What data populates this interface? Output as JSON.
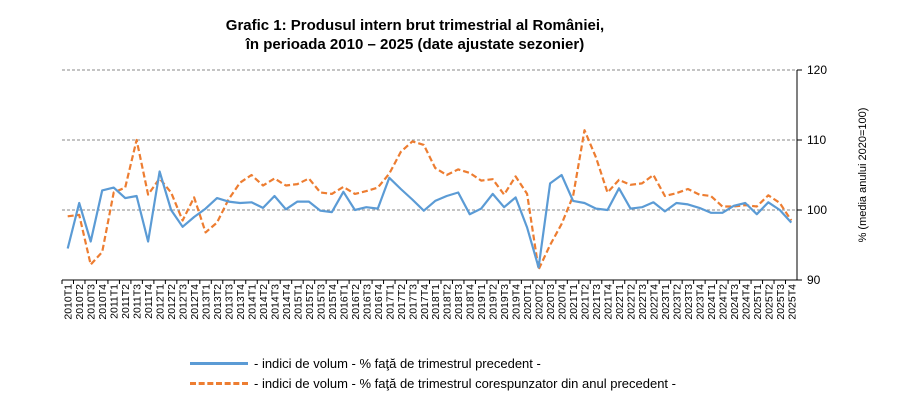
{
  "chart_data": {
    "type": "line",
    "title": "Grafic 1: Produsul intern brut trimestrial al României,",
    "subtitle": "în perioada 2010 – 2025 (date ajustate sezonier)",
    "ylabel": "% (media anului 2020=100)",
    "ylim": [
      90,
      120
    ],
    "yticks": [
      90,
      100,
      110,
      120
    ],
    "y_axis_position": "right",
    "grid": "horizontal dashed",
    "legend_position": "bottom",
    "categories": [
      "2010T1",
      "2010T2",
      "2010T3",
      "2010T4",
      "2011T1",
      "2011T2",
      "2011T3",
      "2011T4",
      "2012T1",
      "2012T2",
      "2012T3",
      "2012T4",
      "2013T1",
      "2013T2",
      "2013T3",
      "2013T4",
      "2014T1",
      "2014T2",
      "2014T3",
      "2014T4",
      "2015T1",
      "2015T2",
      "2015T3",
      "2015T4",
      "2016T1",
      "2016T2",
      "2016T3",
      "2016T4",
      "2017T1",
      "2017T2",
      "2017T3",
      "2017T4",
      "2018T1",
      "2018T2",
      "2018T3",
      "2018T4",
      "2019T1",
      "2019T2",
      "2019T3",
      "2019T4",
      "2020T1",
      "2020T2",
      "2020T3",
      "2020T4",
      "2021T1",
      "2021T2",
      "2021T3",
      "2021T4",
      "2022T1",
      "2022T2",
      "2022T3",
      "2022T4",
      "2023T1",
      "2023T2",
      "2023T3",
      "2023T4",
      "2024T1",
      "2024T2",
      "2024T3",
      "2024T4",
      "2025T1",
      "2025T2",
      "2025T3",
      "2025T4"
    ],
    "series": [
      {
        "name": "- indici de volum - % faţă de trimestrul precedent -",
        "color": "#5B9BD5",
        "style": "solid",
        "values": [
          94.5,
          101,
          95.5,
          102.8,
          103.2,
          101.7,
          102,
          95.5,
          105.5,
          100,
          97.6,
          99,
          100.2,
          101.7,
          101.2,
          101,
          101.1,
          100.3,
          102,
          100.1,
          101.2,
          101.2,
          99.9,
          99.7,
          102.6,
          100,
          100.4,
          100.2,
          104.6,
          103,
          101.5,
          99.9,
          101.3,
          102,
          102.5,
          99.4,
          100.2,
          102.3,
          100.4,
          101.8,
          97.5,
          91.8,
          103.8,
          105,
          101.3,
          101,
          100.2,
          100,
          103.1,
          100.2,
          100.4,
          101.1,
          99.8,
          101,
          100.8,
          100.3,
          99.6,
          99.6,
          100.6,
          101,
          99.4,
          101.1,
          100,
          98.2
        ]
      },
      {
        "name": "- indici de volum - % faţă de trimestrul corespunzator din anul precedent -",
        "color": "#ED7D31",
        "style": "dashed",
        "values": [
          99.1,
          99.3,
          92.2,
          94,
          102.5,
          103.2,
          110,
          102.2,
          104.5,
          102.5,
          98.5,
          101.8,
          96.8,
          98.2,
          101.5,
          103.9,
          105,
          103.5,
          104.5,
          103.5,
          103.7,
          104.5,
          102.5,
          102.3,
          103.3,
          102.3,
          102.7,
          103.2,
          105.2,
          108.3,
          109.8,
          109.3,
          106,
          105,
          105.8,
          105.3,
          104.2,
          104.4,
          102.2,
          104.8,
          102.3,
          91.5,
          95,
          98,
          102,
          111.4,
          107.5,
          102.5,
          104.3,
          103.6,
          103.8,
          105,
          102,
          102.4,
          103,
          102.2,
          102,
          100.5,
          100.5,
          100.7,
          100.5,
          102.1,
          101,
          98.5
        ]
      }
    ]
  }
}
